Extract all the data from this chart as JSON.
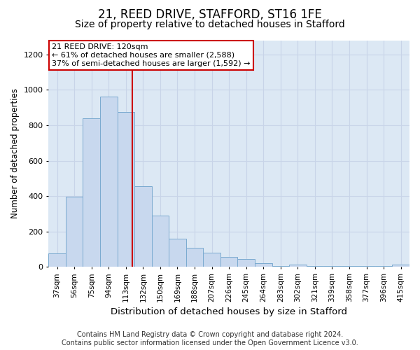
{
  "title1": "21, REED DRIVE, STAFFORD, ST16 1FE",
  "title2": "Size of property relative to detached houses in Stafford",
  "xlabel": "Distribution of detached houses by size in Stafford",
  "ylabel": "Number of detached properties",
  "categories": [
    "37sqm",
    "56sqm",
    "75sqm",
    "94sqm",
    "113sqm",
    "132sqm",
    "150sqm",
    "169sqm",
    "188sqm",
    "207sqm",
    "226sqm",
    "245sqm",
    "264sqm",
    "283sqm",
    "302sqm",
    "321sqm",
    "339sqm",
    "358sqm",
    "377sqm",
    "396sqm",
    "415sqm"
  ],
  "values": [
    75,
    395,
    840,
    960,
    875,
    455,
    290,
    160,
    110,
    80,
    55,
    45,
    20,
    5,
    15,
    5,
    5,
    5,
    5,
    5,
    15
  ],
  "bar_color": "#c8d8ee",
  "bar_edge_color": "#7aaad0",
  "vline_color": "#cc0000",
  "annotation_line1": "21 REED DRIVE: 120sqm",
  "annotation_line2": "← 61% of detached houses are smaller (2,588)",
  "annotation_line3": "37% of semi-detached houses are larger (1,592) →",
  "annotation_box_color": "#ffffff",
  "annotation_box_edge": "#cc0000",
  "footnote1": "Contains HM Land Registry data © Crown copyright and database right 2024.",
  "footnote2": "Contains public sector information licensed under the Open Government Licence v3.0.",
  "ylim": [
    0,
    1280
  ],
  "yticks": [
    0,
    200,
    400,
    600,
    800,
    1000,
    1200
  ],
  "grid_color": "#c8d4e8",
  "bg_color": "#dce8f4",
  "title1_fontsize": 12,
  "title2_fontsize": 10,
  "footnote_fontsize": 7,
  "xlabel_fontsize": 9.5,
  "ylabel_fontsize": 8.5
}
